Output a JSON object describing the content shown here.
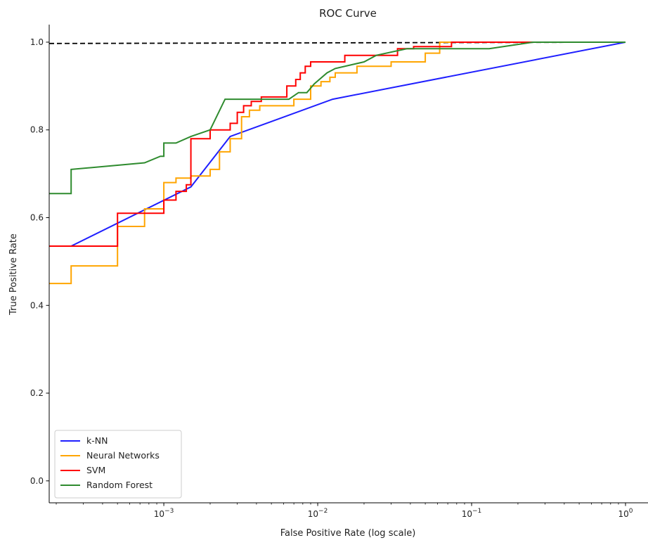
{
  "chart_data": {
    "type": "line",
    "title": "ROC Curve",
    "xlabel": "False Positive Rate (log scale)",
    "ylabel": "True Positive Rate",
    "xscale": "log",
    "xlim": [
      0.00018,
      1.4
    ],
    "ylim": [
      -0.05,
      1.04
    ],
    "x_ticks": [
      {
        "value": 0.001,
        "base": "10",
        "exp": "−3"
      },
      {
        "value": 0.01,
        "base": "10",
        "exp": "−2"
      },
      {
        "value": 0.1,
        "base": "10",
        "exp": "−1"
      },
      {
        "value": 1,
        "base": "10",
        "exp": "0"
      }
    ],
    "y_ticks": [
      "0.0",
      "0.2",
      "0.4",
      "0.6",
      "0.8",
      "1.0"
    ],
    "grid": false,
    "legend_position": "lower-left",
    "reference_line": {
      "style": "dashed",
      "color": "#000000",
      "x": [
        0.00018,
        1
      ],
      "y": [
        0.997,
        1.0
      ]
    },
    "series": [
      {
        "name": "k-NN",
        "color": "#1f1fff",
        "x": [
          0.00025,
          0.00025,
          0.0015,
          0.0027,
          0.0125,
          1.0
        ],
        "y": [
          0.535,
          0.535,
          0.67,
          0.785,
          0.87,
          1.0
        ]
      },
      {
        "name": "Neural Networks",
        "color": "#ffa500",
        "x": [
          0.00018,
          0.00025,
          0.00025,
          0.0005,
          0.0005,
          0.00075,
          0.00075,
          0.001,
          0.001,
          0.0012,
          0.0012,
          0.0015,
          0.0015,
          0.002,
          0.002,
          0.0023,
          0.0023,
          0.0027,
          0.0027,
          0.0032,
          0.0032,
          0.0036,
          0.0036,
          0.0042,
          0.0042,
          0.007,
          0.007,
          0.009,
          0.009,
          0.0105,
          0.0105,
          0.012,
          0.012,
          0.013,
          0.013,
          0.018,
          0.018,
          0.03,
          0.03,
          0.05,
          0.05,
          0.062,
          0.062,
          1.0
        ],
        "y": [
          0.45,
          0.45,
          0.49,
          0.49,
          0.58,
          0.58,
          0.62,
          0.62,
          0.68,
          0.68,
          0.69,
          0.69,
          0.695,
          0.695,
          0.71,
          0.71,
          0.75,
          0.75,
          0.78,
          0.78,
          0.83,
          0.83,
          0.845,
          0.845,
          0.855,
          0.855,
          0.87,
          0.87,
          0.9,
          0.9,
          0.91,
          0.91,
          0.92,
          0.92,
          0.93,
          0.93,
          0.945,
          0.945,
          0.955,
          0.955,
          0.975,
          0.975,
          1.0,
          1.0
        ]
      },
      {
        "name": "SVM",
        "color": "#ff0000",
        "x": [
          0.00018,
          0.0005,
          0.0005,
          0.001,
          0.001,
          0.0012,
          0.0012,
          0.0014,
          0.0014,
          0.0015,
          0.0015,
          0.002,
          0.002,
          0.0027,
          0.0027,
          0.003,
          0.003,
          0.0033,
          0.0033,
          0.0037,
          0.0037,
          0.0043,
          0.0043,
          0.0063,
          0.0063,
          0.0072,
          0.0072,
          0.0077,
          0.0077,
          0.0083,
          0.0083,
          0.009,
          0.009,
          0.015,
          0.015,
          0.033,
          0.033,
          0.042,
          0.042,
          0.074,
          0.074,
          1.0
        ],
        "y": [
          0.535,
          0.535,
          0.61,
          0.61,
          0.64,
          0.64,
          0.66,
          0.66,
          0.675,
          0.675,
          0.78,
          0.78,
          0.8,
          0.8,
          0.815,
          0.815,
          0.84,
          0.84,
          0.855,
          0.855,
          0.865,
          0.865,
          0.875,
          0.875,
          0.9,
          0.9,
          0.915,
          0.915,
          0.93,
          0.93,
          0.945,
          0.945,
          0.955,
          0.955,
          0.97,
          0.97,
          0.985,
          0.985,
          0.99,
          0.99,
          1.0,
          1.0
        ]
      },
      {
        "name": "Random Forest",
        "color": "#2e8b2e",
        "x": [
          0.00018,
          0.00025,
          0.00025,
          0.00075,
          0.00095,
          0.001,
          0.001,
          0.0012,
          0.0015,
          0.002,
          0.0025,
          0.0065,
          0.0075,
          0.0085,
          0.0095,
          0.0115,
          0.013,
          0.02,
          0.024,
          0.038,
          0.13,
          0.25,
          1.0
        ],
        "y": [
          0.655,
          0.655,
          0.71,
          0.725,
          0.74,
          0.74,
          0.77,
          0.77,
          0.785,
          0.8,
          0.87,
          0.87,
          0.885,
          0.885,
          0.905,
          0.93,
          0.94,
          0.955,
          0.97,
          0.985,
          0.985,
          1.0,
          1.0
        ]
      }
    ]
  }
}
